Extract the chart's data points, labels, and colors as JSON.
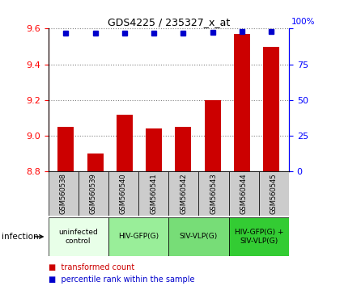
{
  "title": "GDS4225 / 235327_x_at",
  "samples": [
    "GSM560538",
    "GSM560539",
    "GSM560540",
    "GSM560541",
    "GSM560542",
    "GSM560543",
    "GSM560544",
    "GSM560545"
  ],
  "bar_values": [
    9.05,
    8.9,
    9.12,
    9.04,
    9.05,
    9.2,
    9.57,
    9.5
  ],
  "percentile_values": [
    97,
    97,
    97,
    97,
    97,
    97.5,
    98,
    98
  ],
  "ylim_left": [
    8.8,
    9.6
  ],
  "ylim_right": [
    0,
    100
  ],
  "yticks_left": [
    8.8,
    9.0,
    9.2,
    9.4,
    9.6
  ],
  "yticks_right": [
    0,
    25,
    50,
    75,
    100
  ],
  "bar_color": "#cc0000",
  "dot_color": "#0000cc",
  "bar_bottom": 8.8,
  "groups": [
    {
      "label": "uninfected\ncontrol",
      "start": 0,
      "end": 2,
      "color": "#ccffcc"
    },
    {
      "label": "HIV-GFP(G)",
      "start": 2,
      "end": 4,
      "color": "#99ff99"
    },
    {
      "label": "SIV-VLP(G)",
      "start": 4,
      "end": 6,
      "color": "#66ee66"
    },
    {
      "label": "HIV-GFP(G) +\nSIV-VLP(G)",
      "start": 6,
      "end": 8,
      "color": "#33dd33"
    }
  ],
  "sample_box_color": "#cccccc"
}
